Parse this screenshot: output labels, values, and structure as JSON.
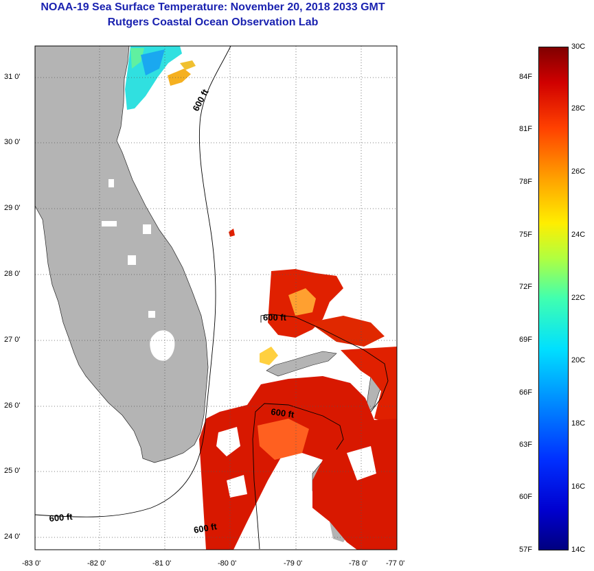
{
  "header": {
    "title": "NOAA-19 Sea Surface Temperature:  November 20, 2018 2033 GMT",
    "subtitle": "Rutgers Coastal Ocean Observation Lab"
  },
  "map": {
    "lat_labels": [
      "31 0'",
      "30 0'",
      "29 0'",
      "28 0'",
      "27 0'",
      "26 0'",
      "25 0'",
      "24 0'"
    ],
    "lon_labels": [
      "-83 0'",
      "-82 0'",
      "-81 0'",
      "-80 0'",
      "-79 0'",
      "-78 0'",
      "-77 0'"
    ],
    "contour_labels": [
      "600 ft",
      "600 ft",
      "600 ft",
      "600 ft",
      "600 ft"
    ],
    "colors": {
      "land": "#b4b4b4",
      "title": "#1a22b0"
    }
  },
  "colorbar": {
    "f_labels": [
      "84F",
      "81F",
      "78F",
      "75F",
      "72F",
      "69F",
      "66F",
      "63F",
      "60F",
      "57F"
    ],
    "c_labels": [
      "30C",
      "28C",
      "26C",
      "24C",
      "22C",
      "20C",
      "18C",
      "16C",
      "14C"
    ],
    "min_c": 14,
    "max_c": 30
  }
}
